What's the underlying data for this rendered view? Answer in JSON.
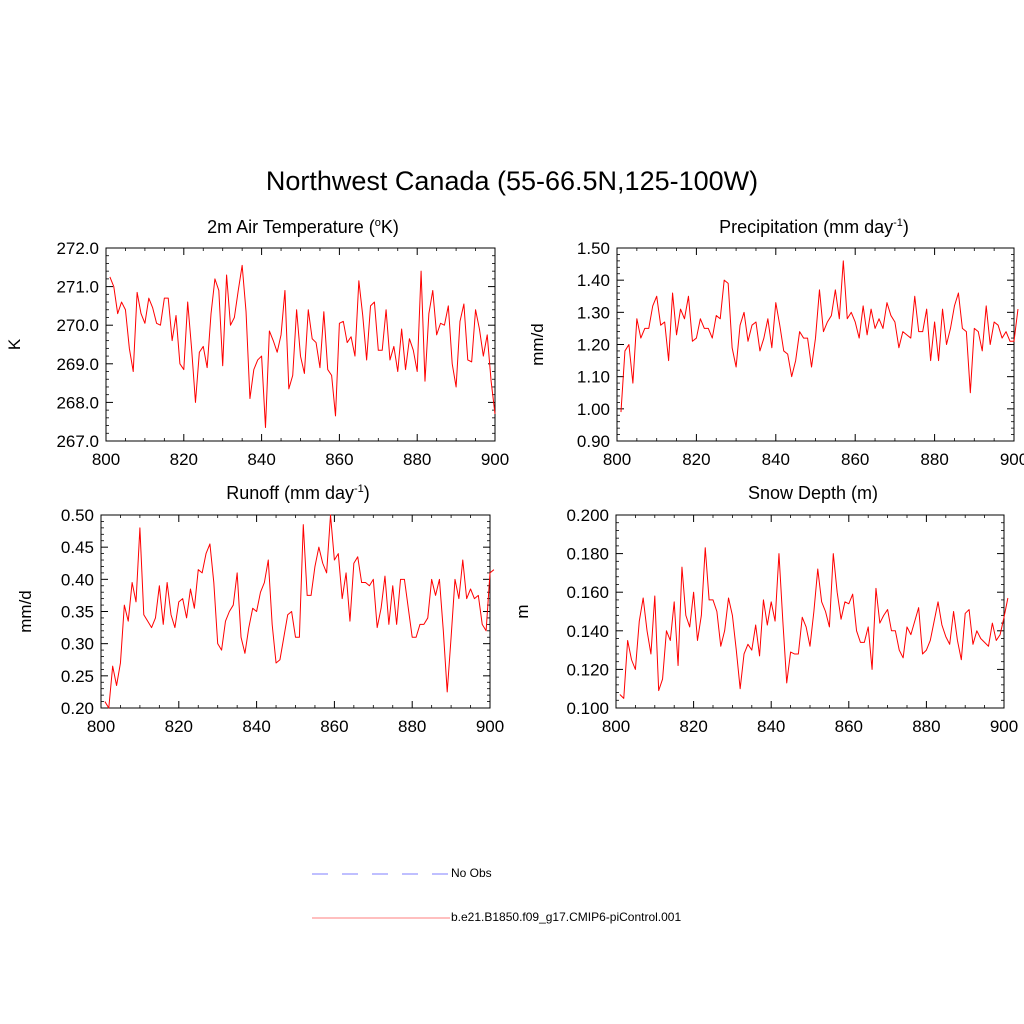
{
  "title": "Northwest Canada (55-66.5N,125-100W)",
  "colors": {
    "model": "#ff0000",
    "obs": "#9999ff",
    "axis": "#000000"
  },
  "legend": [
    {
      "label": "No Obs",
      "style": "dashed",
      "color": "#9999ff"
    },
    {
      "label": "b.e21.B1850.f09_g17.CMIP6-piControl.001",
      "style": "solid",
      "color": "#ff0000"
    }
  ],
  "chart_data": [
    {
      "type": "line",
      "title_main": "2m Air Temperature (",
      "title_sup": "o",
      "title_end": "K)",
      "xlabel": "",
      "ylabel": "K",
      "xlim": [
        800,
        900
      ],
      "ylim": [
        267.0,
        272.0
      ],
      "xticks": [
        800,
        820,
        840,
        860,
        880,
        900
      ],
      "yticks": [
        "267.0",
        "268.0",
        "269.0",
        "270.0",
        "271.0",
        "272.0"
      ],
      "x_start": 801,
      "series": [
        {
          "name": "b.e21.B1850.f09_g17.CMIP6-piControl.001",
          "values": [
            271.25,
            271.0,
            270.3,
            270.6,
            270.4,
            269.4,
            268.8,
            270.85,
            270.3,
            270.05,
            270.7,
            270.45,
            270.05,
            270.0,
            270.7,
            270.7,
            269.6,
            270.25,
            269.0,
            268.85,
            270.6,
            269.4,
            268.0,
            269.3,
            269.45,
            268.9,
            270.3,
            271.2,
            270.9,
            268.95,
            271.3,
            270.0,
            270.2,
            270.9,
            271.55,
            270.35,
            268.1,
            268.85,
            269.1,
            269.2,
            267.35,
            269.85,
            269.6,
            269.3,
            269.75,
            270.9,
            268.35,
            268.7,
            270.4,
            269.2,
            268.75,
            270.4,
            269.65,
            269.55,
            268.9,
            270.35,
            268.85,
            268.7,
            267.65,
            270.05,
            270.1,
            269.55,
            269.7,
            269.2,
            271.15,
            270.25,
            269.1,
            270.5,
            270.6,
            269.35,
            269.35,
            270.4,
            269.1,
            269.45,
            268.8,
            269.9,
            268.85,
            269.65,
            269.35,
            268.8,
            271.4,
            268.55,
            270.3,
            270.9,
            269.75,
            270.05,
            270.0,
            270.5,
            269.0,
            268.4,
            270.1,
            270.55,
            269.1,
            269.05,
            270.4,
            269.9,
            269.2,
            269.75,
            268.55,
            267.7
          ]
        }
      ]
    },
    {
      "type": "line",
      "title_main": "Precipitation (mm day",
      "title_sup": "-1",
      "title_end": ")",
      "xlabel": "",
      "ylabel": "mm/d",
      "xlim": [
        800,
        900
      ],
      "ylim": [
        0.9,
        1.5
      ],
      "xticks": [
        800,
        820,
        840,
        860,
        880,
        900
      ],
      "yticks": [
        "0.90",
        "1.00",
        "1.10",
        "1.20",
        "1.30",
        "1.40",
        "1.50"
      ],
      "x_start": 801,
      "series": [
        {
          "name": "b.e21.B1850.f09_g17.CMIP6-piControl.001",
          "values": [
            0.99,
            1.18,
            1.2,
            1.08,
            1.28,
            1.22,
            1.25,
            1.25,
            1.32,
            1.35,
            1.26,
            1.27,
            1.15,
            1.36,
            1.23,
            1.31,
            1.28,
            1.35,
            1.21,
            1.22,
            1.28,
            1.25,
            1.25,
            1.22,
            1.29,
            1.28,
            1.4,
            1.39,
            1.19,
            1.13,
            1.26,
            1.3,
            1.21,
            1.26,
            1.27,
            1.18,
            1.22,
            1.28,
            1.19,
            1.33,
            1.26,
            1.18,
            1.17,
            1.1,
            1.15,
            1.24,
            1.22,
            1.22,
            1.13,
            1.22,
            1.37,
            1.24,
            1.27,
            1.29,
            1.37,
            1.28,
            1.46,
            1.28,
            1.3,
            1.27,
            1.22,
            1.32,
            1.23,
            1.31,
            1.25,
            1.28,
            1.25,
            1.33,
            1.29,
            1.27,
            1.19,
            1.24,
            1.23,
            1.22,
            1.35,
            1.24,
            1.24,
            1.31,
            1.15,
            1.27,
            1.15,
            1.31,
            1.2,
            1.25,
            1.32,
            1.36,
            1.25,
            1.24,
            1.05,
            1.25,
            1.24,
            1.18,
            1.32,
            1.2,
            1.27,
            1.26,
            1.22,
            1.24,
            1.21,
            1.21,
            1.31
          ]
        }
      ]
    },
    {
      "type": "line",
      "title_main": "Runoff (mm day",
      "title_sup": "-1",
      "title_end": ")",
      "xlabel": "",
      "ylabel": "mm/d",
      "xlim": [
        800,
        900
      ],
      "ylim": [
        0.2,
        0.5
      ],
      "xticks": [
        800,
        820,
        840,
        860,
        880,
        900
      ],
      "yticks": [
        "0.20",
        "0.25",
        "0.30",
        "0.35",
        "0.40",
        "0.45",
        "0.50"
      ],
      "x_start": 801,
      "series": [
        {
          "name": "b.e21.B1850.f09_g17.CMIP6-piControl.001",
          "values": [
            0.21,
            0.2,
            0.265,
            0.235,
            0.27,
            0.36,
            0.335,
            0.395,
            0.365,
            0.48,
            0.345,
            0.335,
            0.325,
            0.34,
            0.39,
            0.33,
            0.395,
            0.345,
            0.325,
            0.365,
            0.37,
            0.34,
            0.385,
            0.355,
            0.415,
            0.41,
            0.44,
            0.455,
            0.395,
            0.3,
            0.29,
            0.335,
            0.35,
            0.36,
            0.41,
            0.31,
            0.285,
            0.325,
            0.355,
            0.35,
            0.38,
            0.395,
            0.43,
            0.33,
            0.27,
            0.275,
            0.31,
            0.345,
            0.35,
            0.31,
            0.31,
            0.485,
            0.375,
            0.375,
            0.42,
            0.45,
            0.425,
            0.41,
            0.5,
            0.43,
            0.44,
            0.37,
            0.41,
            0.335,
            0.425,
            0.435,
            0.395,
            0.395,
            0.39,
            0.4,
            0.325,
            0.355,
            0.405,
            0.33,
            0.39,
            0.33,
            0.4,
            0.4,
            0.355,
            0.31,
            0.31,
            0.33,
            0.33,
            0.34,
            0.4,
            0.375,
            0.4,
            0.32,
            0.225,
            0.31,
            0.4,
            0.37,
            0.43,
            0.37,
            0.385,
            0.37,
            0.375,
            0.33,
            0.32,
            0.41,
            0.415
          ]
        }
      ]
    },
    {
      "type": "line",
      "title_main": "Snow Depth (m)",
      "title_sup": "",
      "title_end": "",
      "xlabel": "",
      "ylabel": "m",
      "xlim": [
        800,
        900
      ],
      "ylim": [
        0.1,
        0.2
      ],
      "xticks": [
        800,
        820,
        840,
        860,
        880,
        900
      ],
      "yticks": [
        "0.100",
        "0.120",
        "0.140",
        "0.160",
        "0.180",
        "0.200"
      ],
      "x_start": 801,
      "series": [
        {
          "name": "b.e21.B1850.f09_g17.CMIP6-piControl.001",
          "values": [
            0.107,
            0.105,
            0.135,
            0.125,
            0.12,
            0.145,
            0.157,
            0.14,
            0.128,
            0.158,
            0.109,
            0.115,
            0.14,
            0.135,
            0.155,
            0.122,
            0.173,
            0.148,
            0.142,
            0.16,
            0.135,
            0.148,
            0.183,
            0.156,
            0.156,
            0.15,
            0.132,
            0.14,
            0.157,
            0.148,
            0.13,
            0.11,
            0.128,
            0.133,
            0.13,
            0.143,
            0.127,
            0.156,
            0.143,
            0.155,
            0.145,
            0.18,
            0.145,
            0.113,
            0.129,
            0.128,
            0.128,
            0.147,
            0.142,
            0.132,
            0.15,
            0.172,
            0.155,
            0.15,
            0.142,
            0.18,
            0.16,
            0.146,
            0.155,
            0.154,
            0.159,
            0.14,
            0.134,
            0.134,
            0.142,
            0.12,
            0.162,
            0.144,
            0.148,
            0.151,
            0.14,
            0.14,
            0.13,
            0.126,
            0.142,
            0.138,
            0.145,
            0.152,
            0.128,
            0.13,
            0.135,
            0.145,
            0.155,
            0.143,
            0.137,
            0.133,
            0.15,
            0.135,
            0.125,
            0.149,
            0.151,
            0.133,
            0.14,
            0.136,
            0.134,
            0.132,
            0.144,
            0.135,
            0.138,
            0.147,
            0.157
          ]
        }
      ]
    }
  ]
}
